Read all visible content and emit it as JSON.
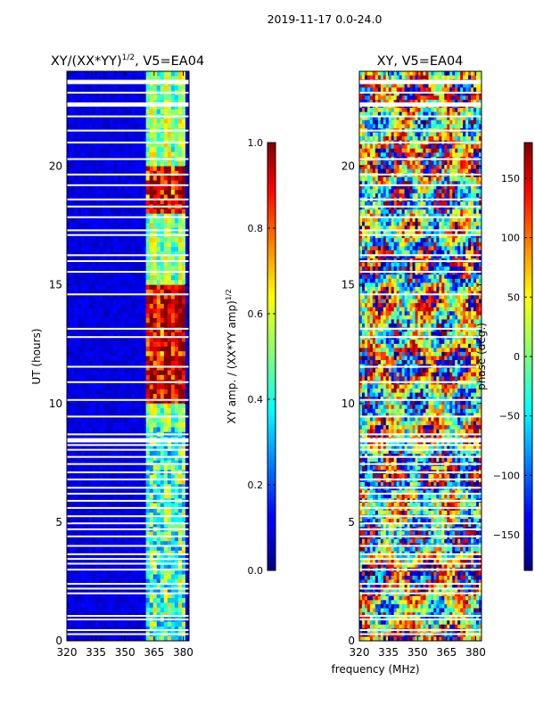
{
  "figure": {
    "suptitle": "2019-11-17 0.0-24.0",
    "xlabel": "frequency (MHz)"
  },
  "chart_data": [
    {
      "type": "heatmap",
      "title": "XY/(XX*YY)",
      "title_exponent": "1/2",
      "title_suffix": ", V5=EA04",
      "xlabel": "",
      "ylabel": "UT (hours)",
      "xlim": [
        320,
        383
      ],
      "ylim": [
        0,
        24
      ],
      "xticks": [
        320,
        335,
        350,
        365,
        380
      ],
      "yticks": [
        0,
        5,
        10,
        15,
        20
      ],
      "colorbar": {
        "label": "XY amp. / (XX*YY amp)",
        "label_exponent": "1/2",
        "range": [
          0.0,
          1.0
        ],
        "ticks": [
          "0.0",
          "0.2",
          "0.4",
          "0.6",
          "0.8",
          "1.0"
        ],
        "colormap": "jet"
      }
    },
    {
      "type": "heatmap",
      "title": "XY, V5=EA04",
      "xlabel": "",
      "ylabel": "",
      "xlim": [
        320,
        383
      ],
      "ylim": [
        0,
        24
      ],
      "xticks": [
        320,
        335,
        350,
        365,
        380
      ],
      "yticks": [
        0,
        5,
        10,
        15,
        20
      ],
      "colorbar": {
        "label": "phase (deg.)",
        "range": [
          -180,
          180
        ],
        "ticks": [
          "150",
          "100",
          "50",
          "0",
          "−50",
          "−100",
          "−150"
        ],
        "colormap": "jet"
      }
    }
  ]
}
